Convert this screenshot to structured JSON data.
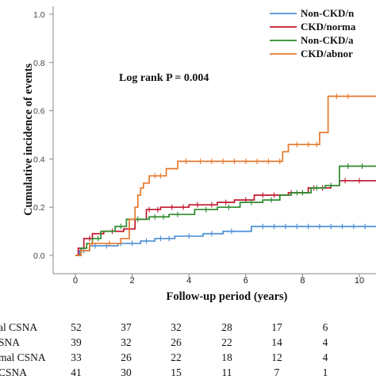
{
  "chart_data": {
    "type": "line",
    "subtype": "kaplan-meier cumulative incidence",
    "xlabel": "Follow-up period (years)",
    "ylabel": "Cumulative incidence of events",
    "xlim": [
      -0.8,
      10.6
    ],
    "ylim": [
      -0.04,
      1.05
    ],
    "xticks": [
      0,
      2,
      4,
      6,
      8,
      10
    ],
    "yticks": [
      0.0,
      0.2,
      0.4,
      0.6,
      0.8,
      1.0
    ],
    "ytick_labels": [
      "0.0",
      "0.2",
      "0.4",
      "0.6",
      "0.8",
      "1.0"
    ],
    "annotation": "Log rank P = 0.004",
    "legend_position": "top-right",
    "series": [
      {
        "name": "Non-CKD/n",
        "color": "#4a8fd4",
        "steps": [
          [
            0,
            0
          ],
          [
            0.15,
            0.02
          ],
          [
            0.5,
            0.04
          ],
          [
            1.5,
            0.05
          ],
          [
            2.3,
            0.06
          ],
          [
            2.8,
            0.07
          ],
          [
            3.5,
            0.08
          ],
          [
            4.5,
            0.09
          ],
          [
            5.2,
            0.1
          ],
          [
            6.2,
            0.12
          ],
          [
            10.6,
            0.12
          ]
        ],
        "censor_x": [
          0.3,
          0.7,
          1.1,
          1.6,
          2.0,
          2.5,
          3.0,
          3.3,
          4.0,
          4.8,
          5.5,
          6.6,
          7.0,
          7.4,
          7.8,
          8.2,
          8.6,
          9.0,
          9.4,
          9.8,
          10.2
        ]
      },
      {
        "name": "CKD/norma",
        "color": "#c0172e",
        "steps": [
          [
            0,
            0
          ],
          [
            0.1,
            0.03
          ],
          [
            0.3,
            0.07
          ],
          [
            0.6,
            0.09
          ],
          [
            1.0,
            0.1
          ],
          [
            1.7,
            0.11
          ],
          [
            2.1,
            0.15
          ],
          [
            2.5,
            0.19
          ],
          [
            3.0,
            0.2
          ],
          [
            4.0,
            0.21
          ],
          [
            5.0,
            0.22
          ],
          [
            5.6,
            0.23
          ],
          [
            6.3,
            0.25
          ],
          [
            7.5,
            0.26
          ],
          [
            8.2,
            0.28
          ],
          [
            9.0,
            0.29
          ],
          [
            9.3,
            0.31
          ],
          [
            10.6,
            0.31
          ]
        ],
        "censor_x": [
          0.5,
          1.3,
          1.9,
          2.6,
          2.9,
          3.4,
          3.8,
          4.3,
          4.8,
          5.3,
          6.0,
          6.6,
          7.0,
          7.6,
          8.0,
          8.4,
          8.7,
          9.5,
          10.0
        ]
      },
      {
        "name": "Non-CKD/a",
        "color": "#2c8a2c",
        "steps": [
          [
            0,
            0
          ],
          [
            0.2,
            0.03
          ],
          [
            0.4,
            0.05
          ],
          [
            0.6,
            0.07
          ],
          [
            0.9,
            0.1
          ],
          [
            1.4,
            0.12
          ],
          [
            1.8,
            0.15
          ],
          [
            2.6,
            0.16
          ],
          [
            3.3,
            0.17
          ],
          [
            4.2,
            0.19
          ],
          [
            5.0,
            0.2
          ],
          [
            5.8,
            0.22
          ],
          [
            6.6,
            0.23
          ],
          [
            7.2,
            0.25
          ],
          [
            7.6,
            0.26
          ],
          [
            8.3,
            0.28
          ],
          [
            8.8,
            0.29
          ],
          [
            9.3,
            0.37
          ],
          [
            10.6,
            0.37
          ]
        ],
        "censor_x": [
          0.8,
          1.6,
          2.2,
          2.8,
          3.1,
          3.6,
          4.6,
          5.4,
          6.2,
          6.9,
          7.8,
          8.0,
          8.5,
          9.0,
          9.6,
          10.1
        ]
      },
      {
        "name": "CKD/abnor",
        "color": "#e6792e",
        "steps": [
          [
            0,
            0
          ],
          [
            0.2,
            0.02
          ],
          [
            0.5,
            0.05
          ],
          [
            1.6,
            0.07
          ],
          [
            1.9,
            0.15
          ],
          [
            2.1,
            0.2
          ],
          [
            2.2,
            0.25
          ],
          [
            2.3,
            0.28
          ],
          [
            2.4,
            0.3
          ],
          [
            2.6,
            0.33
          ],
          [
            3.2,
            0.36
          ],
          [
            3.6,
            0.39
          ],
          [
            7.3,
            0.43
          ],
          [
            7.5,
            0.46
          ],
          [
            8.6,
            0.51
          ],
          [
            8.9,
            0.66
          ],
          [
            10.6,
            0.66
          ]
        ],
        "censor_x": [
          0.6,
          1.2,
          2.8,
          3.0,
          3.9,
          4.4,
          4.8,
          5.2,
          5.6,
          6.0,
          6.4,
          6.8,
          7.2,
          7.8,
          8.2,
          8.5,
          9.2,
          9.6
        ]
      }
    ]
  },
  "risk_table": {
    "rows": [
      {
        "label": "al CSNA",
        "values": [
          "52",
          "37",
          "32",
          "28",
          "17",
          "6"
        ]
      },
      {
        "label": "SNA",
        "values": [
          "39",
          "32",
          "26",
          "22",
          "14",
          "4"
        ]
      },
      {
        "label": "mal CSNA",
        "values": [
          "33",
          "26",
          "22",
          "18",
          "12",
          "4"
        ]
      },
      {
        "label": "CSNA",
        "values": [
          "41",
          "30",
          "15",
          "11",
          "7",
          "1"
        ]
      }
    ]
  }
}
